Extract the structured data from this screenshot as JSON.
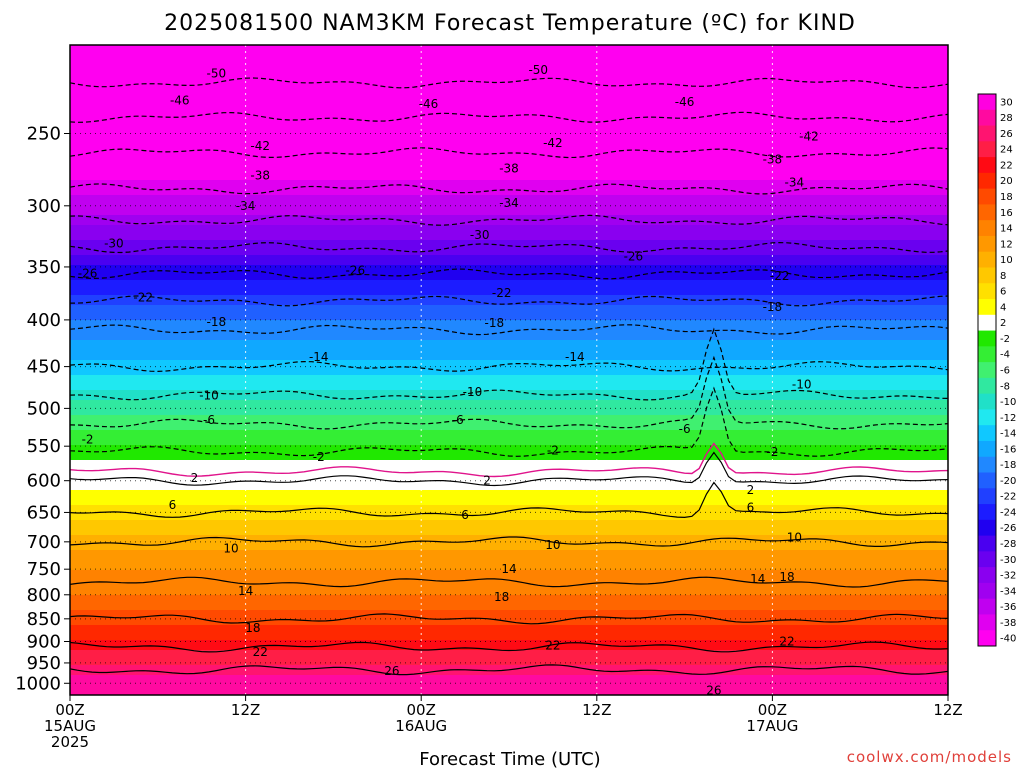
{
  "chart_data": {
    "type": "heatmap",
    "title": "2025081500 NAM3KM Forecast Temperature (ºC) for KIND",
    "xlabel": "Forecast Time (UTC)",
    "ylabel": "",
    "credit": "coolwx.com/models",
    "x_ticks": [
      {
        "hour": 0,
        "lines": [
          "00Z",
          "15AUG",
          "2025"
        ]
      },
      {
        "hour": 12,
        "lines": [
          "12Z"
        ]
      },
      {
        "hour": 24,
        "lines": [
          "00Z",
          "16AUG"
        ]
      },
      {
        "hour": 36,
        "lines": [
          "12Z"
        ]
      },
      {
        "hour": 48,
        "lines": [
          "00Z",
          "17AUG"
        ]
      },
      {
        "hour": 60,
        "lines": [
          "12Z"
        ]
      }
    ],
    "xlim": [
      0,
      60
    ],
    "y_ticks": [
      250,
      300,
      350,
      400,
      450,
      500,
      550,
      600,
      650,
      700,
      750,
      800,
      850,
      900,
      950,
      1000
    ],
    "ylim": [
      200,
      1030
    ],
    "y_scale": "log-pressure",
    "colorbar": {
      "ticks": [
        30,
        28,
        26,
        24,
        22,
        20,
        18,
        16,
        14,
        12,
        10,
        8,
        6,
        4,
        2,
        -2,
        -4,
        -6,
        -8,
        -10,
        -12,
        -14,
        -16,
        -18,
        -20,
        -22,
        -24,
        -26,
        -28,
        -30,
        -32,
        -34,
        -36,
        -38,
        -40
      ],
      "colors": [
        "#ff00e0",
        "#ff0aa0",
        "#ff1470",
        "#ff1e46",
        "#ff0a14",
        "#ff2800",
        "#ff4a00",
        "#ff6600",
        "#ff8200",
        "#ff9800",
        "#ffb000",
        "#ffc800",
        "#ffe000",
        "#ffff00",
        "#ffffff",
        "#20e800",
        "#34ee34",
        "#40f070",
        "#30e8a0",
        "#20e0c8",
        "#20e8f0",
        "#10c8ff",
        "#10a8ff",
        "#2088ff",
        "#2060ff",
        "#2040ff",
        "#1c1cff",
        "#2000f0",
        "#4a00f0",
        "#6a00f0",
        "#8a00f0",
        "#a000f0",
        "#c000f0",
        "#e000f0",
        "#ff00f0"
      ]
    },
    "temperature_profile": {
      "pressure": [
        200,
        250,
        300,
        350,
        400,
        450,
        500,
        550,
        580,
        600,
        650,
        700,
        750,
        800,
        850,
        900,
        950,
        1000
      ],
      "temperature": [
        -54,
        -44,
        -36,
        -27,
        -19,
        -14,
        -8,
        -3,
        1,
        2,
        6,
        10,
        13,
        15,
        18,
        21,
        25,
        28
      ]
    },
    "contour_labels": [
      {
        "value": "-50",
        "hour": 10,
        "p": 215
      },
      {
        "value": "-50",
        "hour": 32,
        "p": 213
      },
      {
        "value": "-46",
        "hour": 7.5,
        "p": 230
      },
      {
        "value": "-46",
        "hour": 24.5,
        "p": 232
      },
      {
        "value": "-46",
        "hour": 42,
        "p": 231
      },
      {
        "value": "-42",
        "hour": 13,
        "p": 258
      },
      {
        "value": "-42",
        "hour": 33,
        "p": 256
      },
      {
        "value": "-42",
        "hour": 50.5,
        "p": 252
      },
      {
        "value": "-38",
        "hour": 13,
        "p": 278
      },
      {
        "value": "-38",
        "hour": 30,
        "p": 273
      },
      {
        "value": "-38",
        "hour": 48,
        "p": 267
      },
      {
        "value": "-34",
        "hour": 12,
        "p": 300
      },
      {
        "value": "-34",
        "hour": 30,
        "p": 298
      },
      {
        "value": "-34",
        "hour": 49.5,
        "p": 283
      },
      {
        "value": "-30",
        "hour": 3,
        "p": 330
      },
      {
        "value": "-30",
        "hour": 28,
        "p": 323
      },
      {
        "value": "-26",
        "hour": 1.2,
        "p": 356
      },
      {
        "value": "-26",
        "hour": 19.5,
        "p": 353
      },
      {
        "value": "-26",
        "hour": 38.5,
        "p": 341
      },
      {
        "value": "-22",
        "hour": 5,
        "p": 378
      },
      {
        "value": "-22",
        "hour": 29.5,
        "p": 374
      },
      {
        "value": "-22",
        "hour": 48.5,
        "p": 358
      },
      {
        "value": "-18",
        "hour": 10,
        "p": 402
      },
      {
        "value": "-18",
        "hour": 29,
        "p": 403
      },
      {
        "value": "-18",
        "hour": 48,
        "p": 387
      },
      {
        "value": "-14",
        "hour": 17,
        "p": 439
      },
      {
        "value": "-14",
        "hour": 34.5,
        "p": 439
      },
      {
        "value": "-10",
        "hour": 9.5,
        "p": 484
      },
      {
        "value": "-10",
        "hour": 27.5,
        "p": 480
      },
      {
        "value": "-10",
        "hour": 50,
        "p": 471
      },
      {
        "value": "-6",
        "hour": 9.5,
        "p": 515
      },
      {
        "value": "-6",
        "hour": 26.5,
        "p": 515
      },
      {
        "value": "-6",
        "hour": 42,
        "p": 527
      },
      {
        "value": "-2",
        "hour": 1.2,
        "p": 541
      },
      {
        "value": "-2",
        "hour": 17,
        "p": 565
      },
      {
        "value": "-2",
        "hour": 33,
        "p": 556
      },
      {
        "value": "-2",
        "hour": 48,
        "p": 558
      },
      {
        "value": "2",
        "hour": 8.5,
        "p": 596
      },
      {
        "value": "2",
        "hour": 28.5,
        "p": 600
      },
      {
        "value": "2",
        "hour": 46.5,
        "p": 614
      },
      {
        "value": "6",
        "hour": 7,
        "p": 638
      },
      {
        "value": "6",
        "hour": 27,
        "p": 654
      },
      {
        "value": "6",
        "hour": 46.5,
        "p": 642
      },
      {
        "value": "10",
        "hour": 11,
        "p": 712
      },
      {
        "value": "10",
        "hour": 33,
        "p": 706
      },
      {
        "value": "10",
        "hour": 49.5,
        "p": 692
      },
      {
        "value": "14",
        "hour": 12,
        "p": 792
      },
      {
        "value": "14",
        "hour": 30,
        "p": 750
      },
      {
        "value": "14",
        "hour": 47,
        "p": 769
      },
      {
        "value": "18",
        "hour": 12.5,
        "p": 870
      },
      {
        "value": "18",
        "hour": 29.5,
        "p": 804
      },
      {
        "value": "18",
        "hour": 49,
        "p": 765
      },
      {
        "value": "22",
        "hour": 13,
        "p": 924
      },
      {
        "value": "22",
        "hour": 33,
        "p": 909
      },
      {
        "value": "22",
        "hour": 49,
        "p": 900
      },
      {
        "value": "26",
        "hour": 22,
        "p": 969
      },
      {
        "value": "26",
        "hour": 44,
        "p": 1018
      }
    ],
    "contours_drawn": [
      -50,
      -46,
      -42,
      -38,
      -34,
      -30,
      -26,
      -22,
      -18,
      -14,
      -10,
      -6,
      -2,
      2,
      6,
      10,
      14,
      18,
      22,
      26
    ],
    "zero_line_color": "#e0148c",
    "ground_color": "#a0522d",
    "grid": true
  }
}
